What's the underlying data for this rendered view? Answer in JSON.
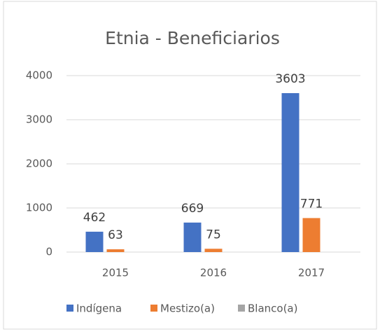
{
  "chart_data": {
    "type": "bar",
    "title": "Etnia - Beneficiarios",
    "categories": [
      "2015",
      "2016",
      "2017"
    ],
    "series": [
      {
        "name": "Indígena",
        "color": "#4472c4",
        "values": [
          462,
          669,
          3603
        ]
      },
      {
        "name": "Mestizo(a)",
        "color": "#ed7d31",
        "values": [
          63,
          75,
          771
        ]
      },
      {
        "name": "Blanco(a)",
        "color": "#a5a5a5",
        "values": [
          null,
          null,
          null
        ]
      }
    ],
    "ylim": [
      0,
      4000
    ],
    "yticks": [
      0,
      1000,
      2000,
      3000,
      4000
    ],
    "grid": true,
    "legend": "bottom"
  }
}
